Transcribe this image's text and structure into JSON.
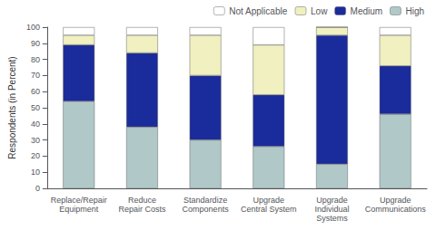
{
  "chart_data": {
    "type": "bar",
    "stacked": true,
    "categories": [
      "Replace/Repair\nEquipment",
      "Reduce\nRepair Costs",
      "Standardize\nComponents",
      "Upgrade\nCentral System",
      "Upgrade\nIndividual\nSystems",
      "Upgrade\nCommunications"
    ],
    "series": [
      {
        "name": "High",
        "color": "#b0c8c8",
        "values": [
          54,
          38,
          30,
          26,
          15,
          46
        ]
      },
      {
        "name": "Medium",
        "color": "#1a2b9b",
        "values": [
          35,
          46,
          40,
          32,
          80,
          30
        ]
      },
      {
        "name": "Low",
        "color": "#f0f0c0",
        "values": [
          6,
          11,
          25,
          31,
          5,
          19
        ]
      },
      {
        "name": "Not Applicable",
        "color": "#ffffff",
        "values": [
          5,
          5,
          5,
          11,
          0,
          5
        ]
      }
    ],
    "ylabel": "Respondents (in Percent)",
    "ylim": [
      0,
      100
    ],
    "yticks": [
      0,
      10,
      20,
      30,
      40,
      50,
      60,
      70,
      80,
      90,
      100
    ],
    "grid": false,
    "legend": "upper right"
  }
}
